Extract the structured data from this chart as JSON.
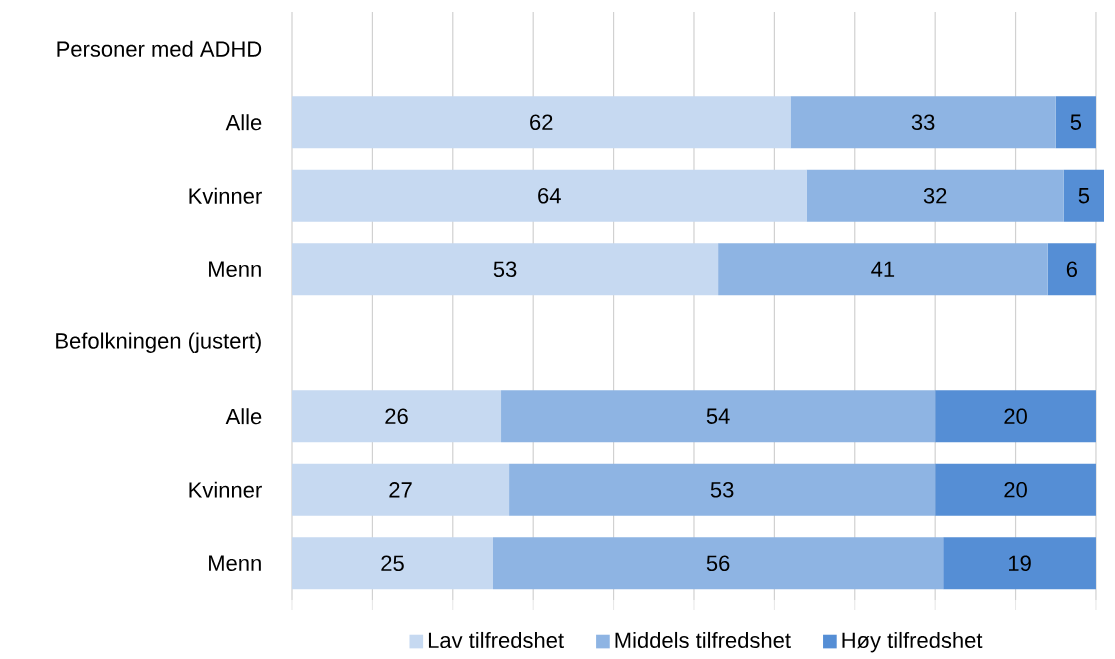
{
  "chart_data": {
    "type": "bar",
    "orientation": "horizontal",
    "stacked": true,
    "data_labels": true,
    "grid": "x",
    "legend": "bottom",
    "tick_labels": "y",
    "categories": [
      "Personer med ADHD",
      "Alle",
      "Kvinner",
      "Menn",
      "Befolkningen (justert)",
      "Alle",
      "Kvinner",
      "Menn"
    ],
    "series": [
      {
        "name": "Lav tilfredshet",
        "color": "#c6d9f1",
        "values": [
          null,
          62,
          64,
          53,
          null,
          26,
          27,
          25
        ]
      },
      {
        "name": "Middels tilfredshet",
        "color": "#8eb4e3",
        "values": [
          null,
          33,
          32,
          41,
          null,
          54,
          53,
          56
        ]
      },
      {
        "name": "Høy tilfredshet",
        "color": "#558ed5",
        "values": [
          null,
          5,
          5,
          6,
          null,
          20,
          20,
          19
        ]
      }
    ]
  }
}
